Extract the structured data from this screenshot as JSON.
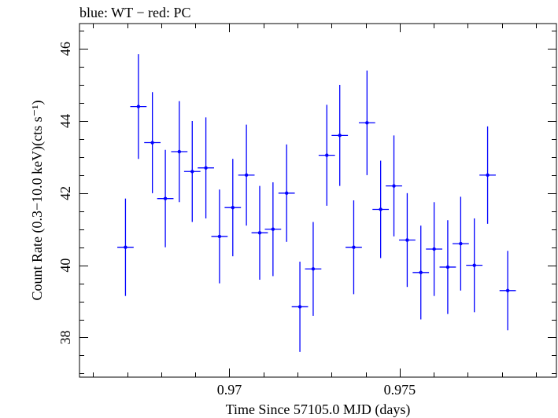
{
  "chart_data": {
    "type": "scatter",
    "title": "blue: WT − red: PC",
    "xlabel": "Time Since 57105.0 MJD (days)",
    "ylabel": "Count Rate (0.3−10.0 keV)(cts s⁻¹)",
    "xlim": [
      0.9656,
      0.9796
    ],
    "ylim": [
      36.9,
      46.7
    ],
    "x_major_ticks": [
      0.97,
      0.975
    ],
    "x_major_tick_labels": [
      "0.97",
      "0.975"
    ],
    "x_minor_step": 0.001,
    "y_major_ticks": [
      38,
      40,
      42,
      44,
      46
    ],
    "y_major_tick_labels": [
      "38",
      "40",
      "42",
      "44",
      "46"
    ],
    "y_minor_step": 0.5,
    "grid": false,
    "legend": "none",
    "color": "#0000ff",
    "x_half_width": 0.00024,
    "series": [
      {
        "x": [
          0.96695,
          0.96733,
          0.96774,
          0.96812,
          0.96853,
          0.96891,
          0.96931,
          0.96971,
          0.9701,
          0.9705,
          0.97089,
          0.97128,
          0.97168,
          0.97207,
          0.97246,
          0.97286,
          0.97324,
          0.97365,
          0.97404,
          0.97444,
          0.97483,
          0.97522,
          0.97562,
          0.97601,
          0.97641,
          0.97679,
          0.97719,
          0.97758,
          0.97817
        ],
        "y": [
          40.5,
          44.4,
          43.4,
          41.85,
          43.15,
          42.6,
          42.7,
          40.8,
          41.6,
          42.5,
          40.9,
          41.0,
          42.0,
          38.85,
          39.9,
          43.05,
          43.6,
          40.5,
          43.95,
          41.55,
          42.2,
          40.7,
          39.8,
          40.45,
          39.95,
          40.6,
          40.0,
          42.5,
          39.3
        ],
        "yerr": [
          1.35,
          1.45,
          1.4,
          1.35,
          1.4,
          1.4,
          1.4,
          1.3,
          1.35,
          1.4,
          1.3,
          1.3,
          1.35,
          1.25,
          1.3,
          1.4,
          1.4,
          1.3,
          1.45,
          1.35,
          1.4,
          1.3,
          1.3,
          1.3,
          1.3,
          1.3,
          1.3,
          1.35,
          1.1
        ]
      }
    ]
  }
}
